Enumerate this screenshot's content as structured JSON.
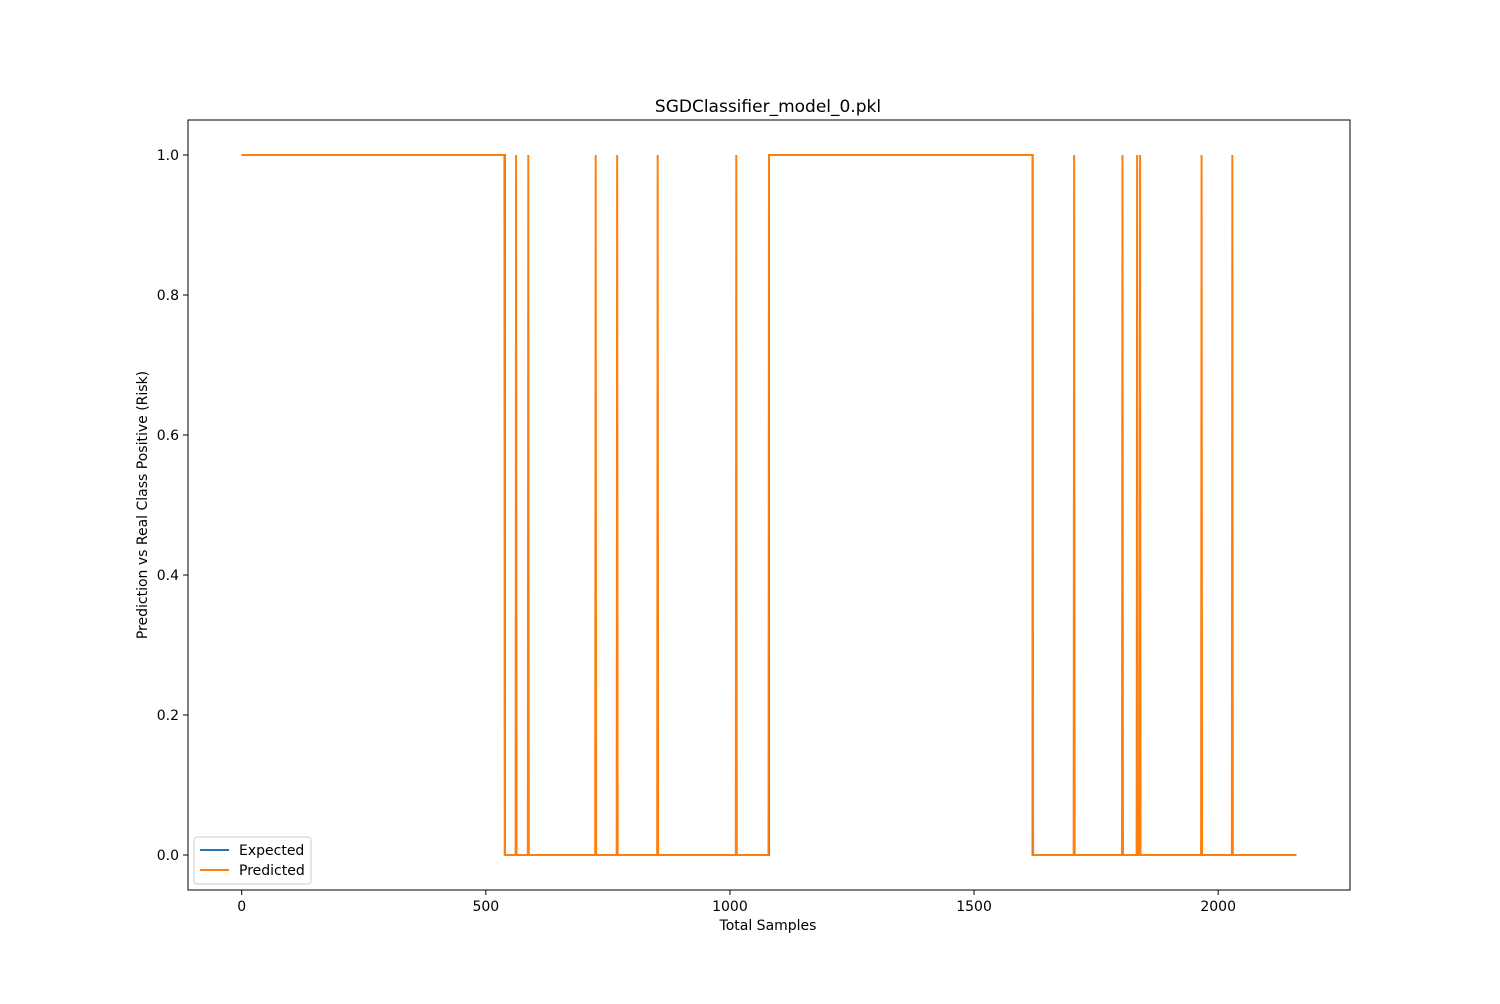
{
  "chart_data": {
    "type": "line",
    "title": "SGDClassifier_model_0.pkl",
    "xlabel": "Total Samples",
    "ylabel": "Prediction vs Real Class Positive (Risk)",
    "xlim": [
      -110,
      2270
    ],
    "ylim": [
      -0.05,
      1.05
    ],
    "xticks": [
      0,
      500,
      1000,
      1500,
      2000
    ],
    "xtick_labels": [
      "0",
      "500",
      "1000",
      "1500",
      "2000"
    ],
    "yticks": [
      0.0,
      0.2,
      0.4,
      0.6,
      0.8,
      1.0
    ],
    "ytick_labels": [
      "0.0",
      "0.2",
      "0.4",
      "0.6",
      "0.8",
      "1.0"
    ],
    "grid": false,
    "legend_position": "lower-left",
    "series": [
      {
        "name": "Expected",
        "color": "#1f77b4",
        "x": [
          0,
          539,
          539,
          1080,
          1080,
          1620,
          1620,
          2160
        ],
        "y": [
          1,
          1,
          0,
          0,
          1,
          1,
          0,
          0
        ]
      },
      {
        "name": "Predicted",
        "color": "#ff7f0e",
        "x": [
          0,
          538,
          539,
          561,
          562,
          563,
          586,
          587,
          588,
          724,
          725,
          726,
          768,
          769,
          770,
          851,
          852,
          853,
          1012,
          1013,
          1014,
          1079,
          1080,
          1620,
          1621,
          1704,
          1705,
          1706,
          1803,
          1804,
          1805,
          1833,
          1834,
          1835,
          1839,
          1840,
          1841,
          1965,
          1966,
          1967,
          2028,
          2029,
          2030,
          2160
        ],
        "y": [
          1,
          1,
          0,
          0,
          1,
          0,
          0,
          1,
          0,
          0,
          1,
          0,
          0,
          1,
          0,
          0,
          1,
          0,
          0,
          1,
          0,
          0,
          1,
          1,
          0,
          0,
          1,
          0,
          0,
          1,
          0,
          0,
          1,
          0,
          0,
          1,
          0,
          0,
          1,
          0,
          0,
          1,
          0,
          0
        ]
      }
    ]
  }
}
